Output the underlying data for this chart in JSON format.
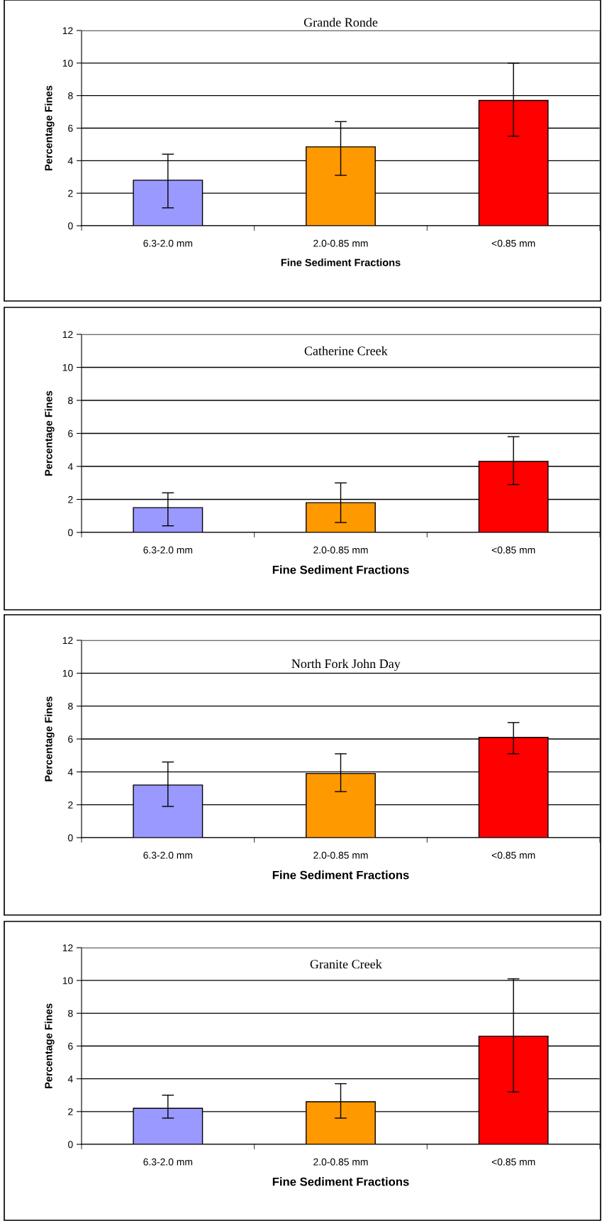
{
  "chart_data": [
    {
      "type": "bar",
      "title": "Grande Ronde",
      "xlabel": "Fine Sediment Fractions",
      "ylabel": "Percentage Fines",
      "categories": [
        "6.3-2.0 mm",
        "2.0-0.85 mm",
        "<0.85 mm"
      ],
      "values": [
        2.8,
        4.85,
        7.7
      ],
      "errors": [
        [
          1.1,
          4.4
        ],
        [
          3.1,
          6.4
        ],
        [
          5.5,
          10.0
        ]
      ],
      "colors": [
        "#9999ff",
        "#ff9900",
        "#ff0000"
      ],
      "ylim": [
        0,
        12
      ],
      "yticks": [
        0,
        2,
        4,
        6,
        8,
        10,
        12
      ],
      "grid": "y"
    },
    {
      "type": "bar",
      "title": "Catherine Creek",
      "xlabel": "Fine Sediment Fractions",
      "ylabel": "Percentage Fines",
      "categories": [
        "6.3-2.0 mm",
        "2.0-0.85 mm",
        "<0.85 mm"
      ],
      "values": [
        1.5,
        1.8,
        4.3
      ],
      "errors": [
        [
          0.4,
          2.4
        ],
        [
          0.6,
          3.0
        ],
        [
          2.9,
          5.8
        ]
      ],
      "colors": [
        "#9999ff",
        "#ff9900",
        "#ff0000"
      ],
      "ylim": [
        0,
        12
      ],
      "yticks": [
        0,
        2,
        4,
        6,
        8,
        10,
        12
      ],
      "grid": "y"
    },
    {
      "type": "bar",
      "title": "North Fork John Day",
      "xlabel": "Fine Sediment Fractions",
      "ylabel": "Percentage Fines",
      "categories": [
        "6.3-2.0 mm",
        "2.0-0.85 mm",
        "<0.85 mm"
      ],
      "values": [
        3.2,
        3.9,
        6.1
      ],
      "errors": [
        [
          1.9,
          4.6
        ],
        [
          2.8,
          5.1
        ],
        [
          5.1,
          7.0
        ]
      ],
      "colors": [
        "#9999ff",
        "#ff9900",
        "#ff0000"
      ],
      "ylim": [
        0,
        12
      ],
      "yticks": [
        0,
        2,
        4,
        6,
        8,
        10,
        12
      ],
      "grid": "y"
    },
    {
      "type": "bar",
      "title": "Granite Creek",
      "xlabel": "Fine Sediment Fractions",
      "ylabel": "Percentage Fines",
      "categories": [
        "6.3-2.0 mm",
        "2.0-0.85 mm",
        "<0.85 mm"
      ],
      "values": [
        2.2,
        2.6,
        6.6
      ],
      "errors": [
        [
          1.6,
          3.0
        ],
        [
          1.6,
          3.7
        ],
        [
          3.2,
          10.1
        ]
      ],
      "colors": [
        "#9999ff",
        "#ff9900",
        "#ff0000"
      ],
      "ylim": [
        0,
        12
      ],
      "yticks": [
        0,
        2,
        4,
        6,
        8,
        10,
        12
      ],
      "grid": "y"
    }
  ]
}
